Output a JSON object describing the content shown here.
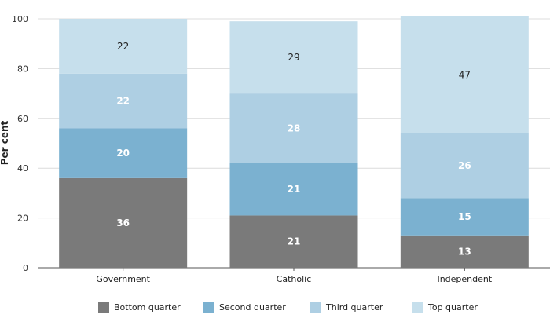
{
  "chart_data": {
    "type": "bar",
    "stacked": true,
    "categories": [
      "Government",
      "Catholic",
      "Independent"
    ],
    "series": [
      {
        "name": "Bottom quarter",
        "values": [
          36,
          21,
          13
        ],
        "color": "#7a7a7a"
      },
      {
        "name": "Second quarter",
        "values": [
          20,
          21,
          15
        ],
        "color": "#7bb1d0"
      },
      {
        "name": "Third quarter",
        "values": [
          22,
          28,
          26
        ],
        "color": "#aecfe3"
      },
      {
        "name": "Top quarter",
        "values": [
          22,
          29,
          47
        ],
        "color": "#c6dfec"
      }
    ],
    "ylabel": "Per cent",
    "xlabel": "",
    "ylim": [
      0,
      100
    ],
    "yticks": [
      0,
      20,
      40,
      60,
      80,
      100
    ],
    "grid": true,
    "legend": "bottom"
  }
}
